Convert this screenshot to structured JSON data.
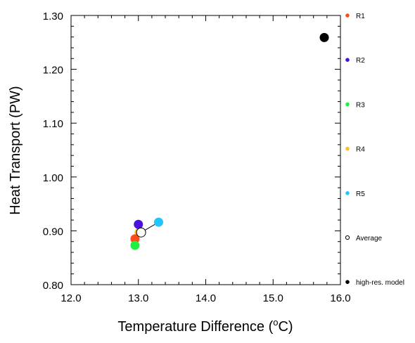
{
  "chart_data": {
    "type": "scatter",
    "xlabel": "Temperature Difference (",
    "xlabel_degree": "o",
    "xlabel_unit": "C)",
    "ylabel": "Heat Transport (PW)",
    "xlim": [
      12.0,
      16.0
    ],
    "ylim": [
      0.8,
      1.3
    ],
    "x_ticks": [
      "12.0",
      "13.0",
      "14.0",
      "15.0",
      "16.0"
    ],
    "y_ticks": [
      "0.80",
      "0.90",
      "1.00",
      "1.10",
      "1.20",
      "1.30"
    ],
    "grid": false,
    "legend_position": "right",
    "series": [
      {
        "name": "R1",
        "color": "#ff4a1a",
        "x": 12.95,
        "y": 0.885,
        "marker": "filled-circle"
      },
      {
        "name": "R2",
        "color": "#4a10e0",
        "x": 13.0,
        "y": 0.912,
        "marker": "filled-circle"
      },
      {
        "name": "R3",
        "color": "#22ee44",
        "x": 12.95,
        "y": 0.873,
        "marker": "filled-circle"
      },
      {
        "name": "R4",
        "color": "#ffc120",
        "x": 13.01,
        "y": 0.897,
        "marker": "filled-circle"
      },
      {
        "name": "R5",
        "color": "#22c6ff",
        "x": 13.3,
        "y": 0.916,
        "marker": "filled-circle"
      },
      {
        "name": "Average",
        "color": "#000000",
        "x": 13.04,
        "y": 0.897,
        "marker": "open-circle"
      },
      {
        "name": "high-res. model",
        "color": "#000000",
        "x": 15.76,
        "y": 1.259,
        "marker": "filled-circle"
      }
    ],
    "connector": {
      "from": [
        13.04,
        0.897
      ],
      "to": [
        13.3,
        0.916
      ],
      "color": "#000000"
    }
  }
}
